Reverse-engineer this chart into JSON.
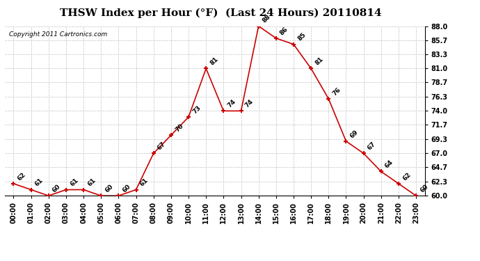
{
  "title": "THSW Index per Hour (°F)  (Last 24 Hours) 20110814",
  "copyright": "Copyright 2011 Cartronics.com",
  "hours": [
    "00:00",
    "01:00",
    "02:00",
    "03:00",
    "04:00",
    "05:00",
    "06:00",
    "07:00",
    "08:00",
    "09:00",
    "10:00",
    "11:00",
    "12:00",
    "13:00",
    "14:00",
    "15:00",
    "16:00",
    "17:00",
    "18:00",
    "19:00",
    "20:00",
    "21:00",
    "22:00",
    "23:00"
  ],
  "values": [
    62,
    61,
    60,
    61,
    61,
    60,
    60,
    61,
    67,
    70,
    73,
    81,
    74,
    74,
    88,
    86,
    85,
    81,
    76,
    69,
    67,
    64,
    62,
    60
  ],
  "ylim_min": 60.0,
  "ylim_max": 88.0,
  "yticks": [
    60.0,
    62.3,
    64.7,
    67.0,
    69.3,
    71.7,
    74.0,
    76.3,
    78.7,
    81.0,
    83.3,
    85.7,
    88.0
  ],
  "ytick_labels": [
    "60.0",
    "62.3",
    "64.7",
    "67.0",
    "69.3",
    "71.7",
    "74.0",
    "76.3",
    "78.7",
    "81.0",
    "83.3",
    "85.7",
    "88.0"
  ],
  "line_color": "#cc0000",
  "marker_color": "#cc0000",
  "background_color": "#ffffff",
  "grid_color": "#c0c0c0",
  "title_fontsize": 11,
  "label_fontsize": 6.5,
  "tick_fontsize": 7,
  "copyright_fontsize": 6.5
}
